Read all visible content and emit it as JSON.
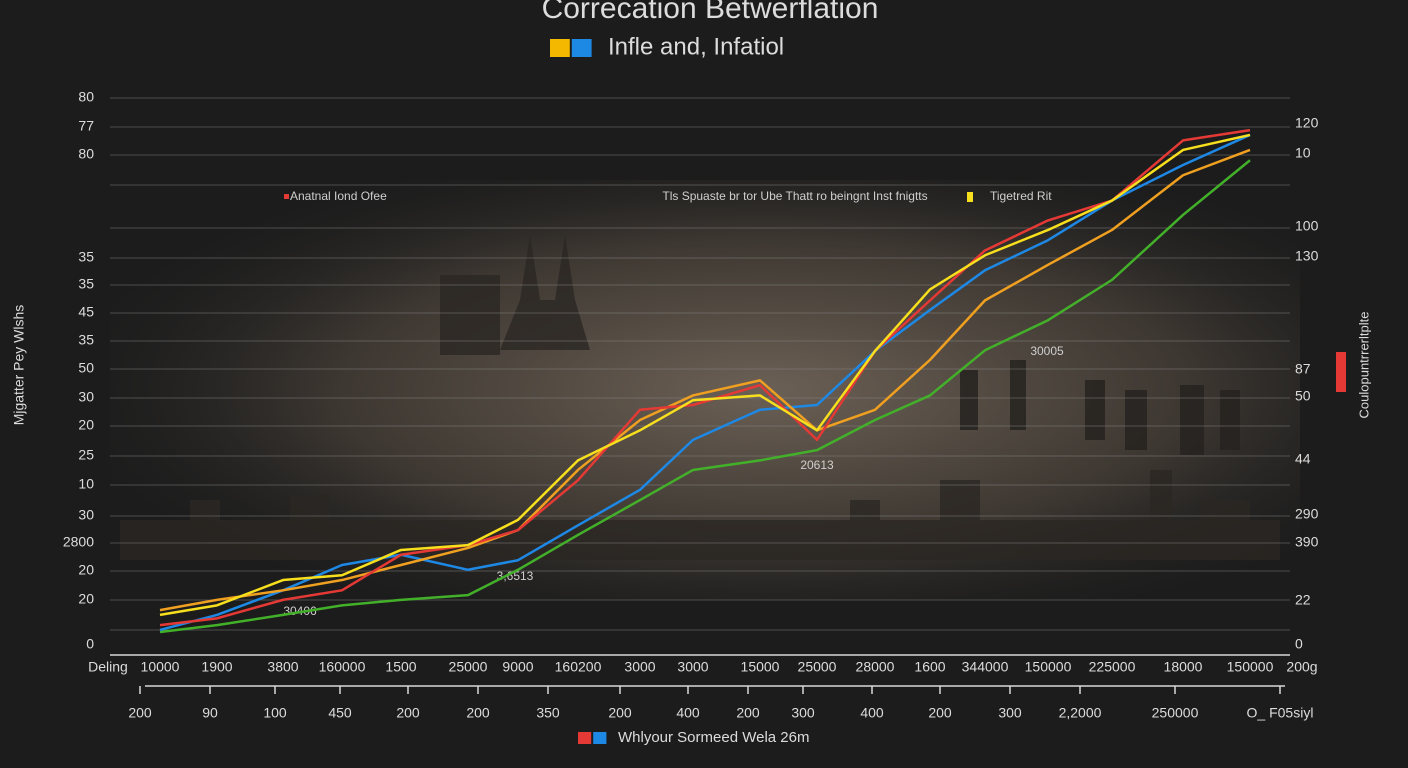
{
  "chart_data": {
    "type": "line",
    "title": "Correcation Betwerflation",
    "legends": [
      {
        "label": "Infle and, Infatiol",
        "colors": [
          "#f5b800",
          "#1e88e5"
        ]
      },
      {
        "label": "Whlyour Sormeed Wela 26m",
        "colors": [
          "#e53935",
          "#1e88e5"
        ]
      }
    ],
    "y_axis_title": "Mjgatter Pey Wlshs",
    "y2_axis_title": "Coulopuntrrerltplte",
    "left_labels": [
      "80",
      "77",
      "80",
      "35",
      "35",
      "45",
      "35",
      "50",
      "30",
      "20",
      "25",
      "10",
      "30",
      "2800",
      "20",
      "20",
      "0"
    ],
    "right_labels": [
      "120",
      "10",
      "100",
      "130",
      "87",
      "50",
      "44",
      "290",
      "390",
      "22",
      "0"
    ],
    "x_axis_start": "Deling",
    "x_axis_end": "200g",
    "categories": [
      "10000",
      "1900",
      "3800",
      "160000",
      "1500",
      "25000",
      "9000",
      "160200",
      "3000",
      "3000",
      "15000",
      "25000",
      "28000",
      "1600",
      "344000",
      "150000",
      "225000",
      "18000",
      "150000"
    ],
    "x2_categories": [
      "200",
      "90",
      "100",
      "450",
      "200",
      "200",
      "350",
      "200",
      "400",
      "200",
      "300",
      "400",
      "200",
      "300",
      "2,2000",
      "250000",
      "O_ F05siyl"
    ],
    "annotations": [
      "Anatnal Iond Ofee",
      "Tls Spuaste br tor Ube Thatt ro beingnt Inst fnigtts",
      "Tigetred Rit",
      "30005",
      "20613",
      "3,6513",
      "30406"
    ],
    "ylim": [
      0,
      80
    ],
    "series": [
      {
        "color": "#43b02a",
        "values": [
          1.9,
          2.9,
          4.4,
          5.8,
          6.6,
          7.3,
          11,
          16.1,
          21.2,
          25.6,
          27,
          28.5,
          32.9,
          36.5,
          43.1,
          47.5,
          53.4,
          62.9,
          70.9
        ]
      },
      {
        "color": "#1e88e5",
        "values": [
          2.2,
          4.4,
          8,
          11.7,
          13.2,
          11,
          12.4,
          17.5,
          22.7,
          30,
          34.4,
          35.1,
          43,
          49,
          54.8,
          59.2,
          65,
          70.2,
          74.6
        ]
      },
      {
        "color": "#f0a020",
        "values": [
          5.1,
          6.6,
          8,
          9.5,
          11.7,
          14.2,
          16.8,
          25.6,
          32.9,
          36.5,
          38.7,
          31.4,
          34.4,
          41.7,
          50.4,
          55.6,
          60.7,
          68.7,
          72.4
        ]
      },
      {
        "color": "#e53935",
        "values": [
          2.9,
          3.9,
          6.6,
          8,
          13.2,
          14.6,
          16.8,
          24.1,
          34.4,
          35.1,
          38,
          30,
          43,
          50.4,
          57.7,
          62.1,
          65,
          73.8,
          75.3
        ]
      },
      {
        "color": "#f7df1e",
        "values": [
          4.4,
          5.8,
          9.5,
          10.2,
          13.9,
          14.6,
          18.3,
          27,
          31.4,
          35.8,
          36.5,
          31.4,
          43,
          52,
          57,
          60.7,
          65,
          72.4,
          74.6
        ]
      }
    ]
  }
}
